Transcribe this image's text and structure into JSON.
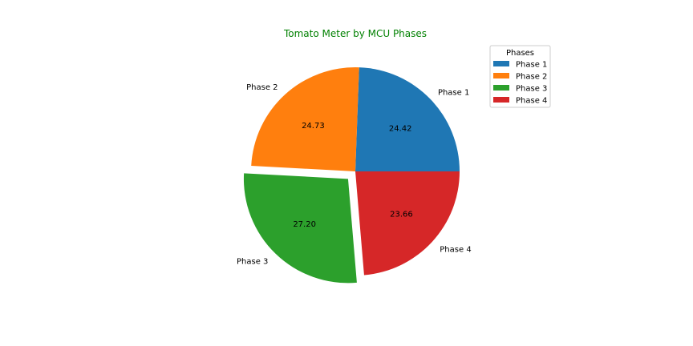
{
  "chart_data": {
    "type": "pie",
    "title": "Tomato Meter by MCU Phases",
    "title_color": "#008000",
    "categories": [
      "Phase 1",
      "Phase 2",
      "Phase 3",
      "Phase 4"
    ],
    "values": [
      24.42,
      24.73,
      27.2,
      23.66
    ],
    "value_labels": [
      "24.42",
      "24.73",
      "27.20",
      "23.66"
    ],
    "colors": [
      "#1f77b4",
      "#ff7f0e",
      "#2ca02c",
      "#d62728"
    ],
    "exploded": [
      false,
      false,
      true,
      false
    ],
    "legend": {
      "title": "Phases",
      "placement": "top-right",
      "entries": [
        "Phase 1",
        "Phase 2",
        "Phase 3",
        "Phase 4"
      ]
    }
  }
}
